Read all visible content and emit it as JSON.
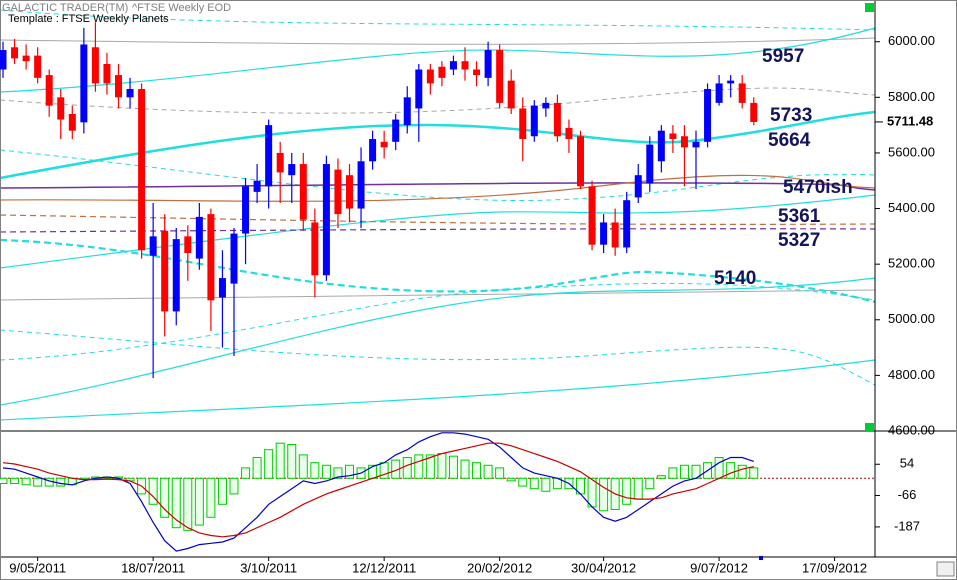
{
  "app": {
    "name": "GALACTIC TRADER(TM)"
  },
  "chart_data": [
    {
      "type": "candlestick",
      "title": "^FTSE Weekly EOD",
      "subtitle": "Template : FTSE Weekly Planets",
      "categories": [
        null,
        null,
        null,
        "9/05/2011",
        null,
        null,
        null,
        null,
        null,
        null,
        null,
        null,
        null,
        "18/07/2011",
        null,
        null,
        null,
        null,
        null,
        null,
        null,
        null,
        null,
        "3/10/2011",
        null,
        null,
        null,
        null,
        null,
        null,
        null,
        null,
        null,
        "12/12/2011",
        null,
        null,
        null,
        null,
        null,
        null,
        null,
        null,
        null,
        "20/02/2012",
        null,
        null,
        null,
        null,
        null,
        null,
        null,
        null,
        "30/04/2012",
        null,
        null,
        null,
        null,
        null,
        null,
        null,
        null,
        null,
        "9/07/2012",
        null,
        null,
        null,
        null,
        null,
        null,
        null,
        null,
        null,
        "17/09/2012",
        null,
        null
      ],
      "open": [
        5900,
        5980,
        5950,
        5950,
        5880,
        5800,
        5740,
        5710,
        5980,
        5920,
        5880,
        5800,
        5830,
        5230,
        5320,
        5030,
        5300,
        5220,
        5380,
        5080,
        5130,
        5310,
        5460,
        5480,
        5600,
        5520,
        5560,
        5350,
        5160,
        5540,
        5520,
        5400,
        5570,
        5640,
        5640,
        5700,
        5760,
        5900,
        5910,
        5900,
        5930,
        5900,
        5870,
        5970,
        5860,
        5760,
        5660,
        5760,
        5780,
        5690,
        5660,
        5480,
        5270,
        5350,
        5260,
        5440,
        5490,
        5570,
        5670,
        5660,
        5620,
        5640,
        5780,
        5850,
        5850,
        5780,
        null,
        null,
        null,
        null,
        null,
        null,
        null,
        null,
        null
      ],
      "high": [
        6000,
        6010,
        5990,
        5980,
        5900,
        5830,
        5770,
        6050,
        6070,
        5960,
        5920,
        5870,
        5850,
        5420,
        5380,
        5330,
        5340,
        5420,
        5400,
        5250,
        5330,
        5510,
        5560,
        5720,
        5640,
        5600,
        5600,
        5400,
        5590,
        5580,
        5560,
        5620,
        5680,
        5680,
        5740,
        5840,
        5920,
        5920,
        5930,
        5950,
        5980,
        5930,
        6000,
        5990,
        5900,
        5800,
        5790,
        5800,
        5810,
        5720,
        5680,
        5500,
        5380,
        5400,
        5460,
        5560,
        5660,
        5700,
        5700,
        5700,
        5680,
        5850,
        5880,
        5880,
        5880,
        5800,
        null,
        null,
        null,
        null,
        null,
        null,
        null,
        null,
        null
      ],
      "low": [
        5870,
        5920,
        5900,
        5850,
        5730,
        5650,
        5650,
        5670,
        5820,
        5810,
        5760,
        5760,
        5220,
        4790,
        4940,
        4980,
        5140,
        5180,
        4960,
        4900,
        4870,
        5200,
        5420,
        5400,
        5420,
        5420,
        5320,
        5080,
        5140,
        5330,
        5350,
        5330,
        5540,
        5580,
        5610,
        5670,
        5640,
        5810,
        5840,
        5880,
        5860,
        5840,
        5840,
        5760,
        5740,
        5570,
        5640,
        5730,
        5640,
        5600,
        5470,
        5250,
        5240,
        5230,
        5240,
        5420,
        5460,
        5530,
        5600,
        5480,
        5470,
        5620,
        5770,
        5800,
        5760,
        5700,
        null,
        null,
        null,
        null,
        null,
        null,
        null,
        null,
        null
      ],
      "close": [
        5970,
        5940,
        5930,
        5870,
        5770,
        5720,
        5680,
        5990,
        5850,
        5850,
        5800,
        5830,
        5250,
        5300,
        5030,
        5290,
        5240,
        5370,
        5070,
        5150,
        5310,
        5480,
        5500,
        5700,
        5530,
        5560,
        5360,
        5160,
        5560,
        5380,
        5400,
        5570,
        5650,
        5620,
        5720,
        5800,
        5900,
        5850,
        5870,
        5930,
        5900,
        5880,
        5970,
        5780,
        5760,
        5650,
        5770,
        5780,
        5660,
        5650,
        5480,
        5270,
        5350,
        5260,
        5430,
        5520,
        5630,
        5680,
        5650,
        5620,
        5640,
        5830,
        5850,
        5860,
        5780,
        5711.48,
        null,
        null,
        null,
        null,
        null,
        null,
        null,
        null,
        null
      ],
      "up_color": "#0000ff",
      "down_color": "#ff0000",
      "ylim": [
        4600,
        6150
      ],
      "yticks": [
        {
          "value": 4600,
          "label": "4600.00"
        },
        {
          "value": 4800,
          "label": "4800.00"
        },
        {
          "value": 5000,
          "label": "5000.00"
        },
        {
          "value": 5200,
          "label": "5200.00"
        },
        {
          "value": 5400,
          "label": "5400.00"
        },
        {
          "value": 5600,
          "label": "5600.00"
        },
        {
          "value": 5800,
          "label": "5800.00"
        },
        {
          "value": 6000,
          "label": "6000.00"
        }
      ],
      "annotations": [
        "5957",
        "5733",
        "5664",
        "5470ish",
        "5361",
        "5327",
        "5140"
      ]
    },
    {
      "type": "oscillator",
      "ylim": [
        -295,
        178
      ],
      "yticks": [
        54,
        -66,
        -187
      ],
      "histogram": {
        "color": "#00cc00",
        "values": [
          -20,
          -20,
          -25,
          -30,
          -30,
          -30,
          -25,
          -5,
          5,
          5,
          5,
          -10,
          -60,
          -100,
          -150,
          -190,
          -200,
          -180,
          -150,
          -100,
          -60,
          40,
          80,
          110,
          135,
          130,
          90,
          60,
          50,
          40,
          50,
          40,
          50,
          60,
          70,
          80,
          90,
          90,
          95,
          85,
          70,
          60,
          50,
          40,
          -10,
          -30,
          -40,
          -50,
          -40,
          -40,
          -60,
          -110,
          -125,
          -120,
          -100,
          -80,
          -40,
          10,
          40,
          50,
          50,
          60,
          80,
          60,
          50,
          40,
          null,
          null,
          null,
          null,
          null,
          null,
          null,
          null,
          null
        ]
      },
      "lines": [
        {
          "color": "#0000cc",
          "values": [
            40,
            35,
            20,
            5,
            -10,
            -20,
            -25,
            -10,
            0,
            5,
            0,
            -20,
            -90,
            -170,
            -240,
            -280,
            -270,
            -255,
            -250,
            -245,
            -230,
            -190,
            -150,
            -100,
            -70,
            -40,
            -10,
            -20,
            -10,
            5,
            10,
            20,
            45,
            60,
            90,
            110,
            140,
            160,
            175,
            175,
            170,
            160,
            150,
            120,
            80,
            40,
            20,
            10,
            0,
            -20,
            -60,
            -110,
            -150,
            -165,
            -150,
            -120,
            -90,
            -60,
            -30,
            -10,
            0,
            30,
            60,
            80,
            80,
            65,
            null,
            null,
            null,
            null,
            null,
            null,
            null,
            null,
            null
          ]
        },
        {
          "color": "#cc0000",
          "values": [
            60,
            55,
            45,
            35,
            20,
            10,
            0,
            -5,
            -5,
            -3,
            -5,
            -10,
            -30,
            -70,
            -120,
            -160,
            -190,
            -210,
            -220,
            -225,
            -220,
            -210,
            -190,
            -170,
            -150,
            -125,
            -100,
            -80,
            -60,
            -45,
            -30,
            -15,
            0,
            15,
            30,
            50,
            65,
            80,
            95,
            105,
            115,
            125,
            135,
            135,
            125,
            110,
            95,
            80,
            65,
            45,
            25,
            -5,
            -35,
            -60,
            -75,
            -80,
            -80,
            -75,
            -60,
            -50,
            -40,
            -20,
            0,
            20,
            35,
            45,
            null,
            null,
            null,
            null,
            null,
            null,
            null,
            null,
            null
          ]
        }
      ]
    }
  ]
}
